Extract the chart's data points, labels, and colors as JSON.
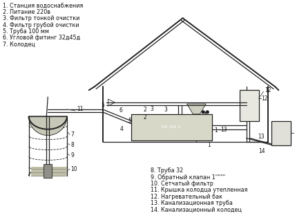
{
  "bg_color": "#ffffff",
  "line_color": "#222222",
  "legend_left": [
    "1. Станция водоснабжения",
    "2. Питание 220в",
    "3. Фильтр тонкой очистки",
    "4. Фильтр грубой очистки",
    "5. Труба 100 мм",
    "6. Угловой фитинг 32д45д",
    "7. Колодец"
  ],
  "legend_right": [
    "8. Труба 32",
    "9. Обратный клапан 1\"\"\"\"",
    "10. Сетчатый фильтр",
    "11. Крышка колодца утепленная",
    "12. Нагревательный бак",
    "13. Канализационная труба",
    "14. Канализационный колодец"
  ],
  "font_size_legend": 5.8,
  "dpi": 100,
  "figsize": [
    4.3,
    3.15
  ]
}
